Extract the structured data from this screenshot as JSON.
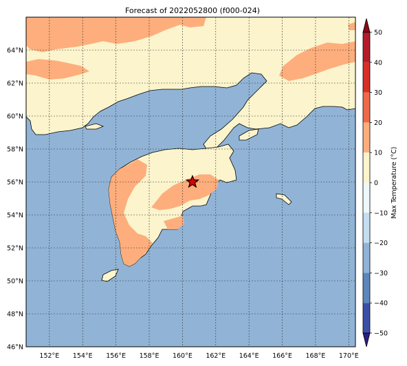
{
  "title": "Forecast of 2022052800 (f000-024)",
  "map": {
    "lon_ticks": [
      "152°E",
      "154°E",
      "156°E",
      "158°E",
      "160°E",
      "162°E",
      "164°E",
      "166°E",
      "168°E",
      "170°E"
    ],
    "lon_values": [
      152,
      154,
      156,
      158,
      160,
      162,
      164,
      166,
      168,
      170
    ],
    "lat_ticks": [
      "64°N",
      "62°N",
      "60°N",
      "58°N",
      "56°N",
      "54°N",
      "52°N",
      "50°N",
      "48°N",
      "46°N"
    ],
    "lat_values": [
      64,
      62,
      60,
      58,
      56,
      54,
      52,
      50,
      48,
      46
    ],
    "lon_range": [
      150.6,
      170.4
    ],
    "lat_range": [
      46,
      66
    ],
    "marker": {
      "lon": 160.6,
      "lat": 56.0,
      "symbol": "star",
      "color": "#e00000"
    },
    "colors": {
      "ocean": "#91b4d6",
      "zero_to_ten": "#fbf4cc",
      "ten_to_twenty": "#fdae7c",
      "coast": "#000000"
    }
  },
  "colorbar": {
    "label": "Max Temperature (°C)",
    "ticks": [
      "50",
      "40",
      "30",
      "20",
      "10",
      "0",
      "−10",
      "−20",
      "−30",
      "−40",
      "−50"
    ],
    "tick_values": [
      50,
      40,
      30,
      20,
      10,
      0,
      -10,
      -20,
      -30,
      -40,
      -50
    ],
    "bin_colors_top_to_bottom": [
      "#8b0a18",
      "#b51c2a",
      "#d73027",
      "#ef6a47",
      "#fdae7c",
      "#fbf4cc",
      "#eef8fb",
      "#c3def0",
      "#91b4d6",
      "#5c87bd",
      "#3b4fa6",
      "#2b1d83"
    ]
  }
}
